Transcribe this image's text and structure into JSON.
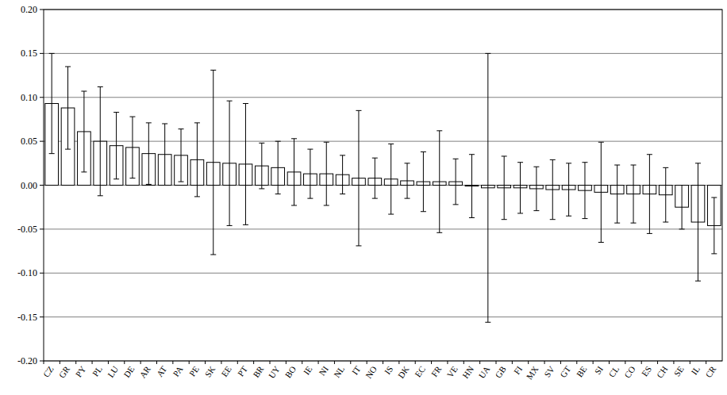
{
  "chart_data": {
    "type": "bar",
    "categories": [
      "CZ",
      "GR",
      "PY",
      "PL",
      "LU",
      "DE",
      "AR",
      "AT",
      "PA",
      "PE",
      "SK",
      "EE",
      "PT",
      "BR",
      "UY",
      "BO",
      "IE",
      "NI",
      "NL",
      "IT",
      "NO",
      "IS",
      "DK",
      "EC",
      "FR",
      "VE",
      "HN",
      "UA",
      "GB",
      "FI",
      "MX",
      "SV",
      "GT",
      "BE",
      "SI",
      "CL",
      "CO",
      "ES",
      "CH",
      "SE",
      "IL",
      "CR"
    ],
    "values": [
      0.093,
      0.088,
      0.061,
      0.05,
      0.045,
      0.043,
      0.036,
      0.035,
      0.034,
      0.029,
      0.026,
      0.025,
      0.024,
      0.022,
      0.02,
      0.015,
      0.013,
      0.013,
      0.012,
      0.008,
      0.008,
      0.007,
      0.005,
      0.004,
      0.004,
      0.004,
      -0.001,
      -0.003,
      -0.003,
      -0.003,
      -0.004,
      -0.005,
      -0.005,
      -0.006,
      -0.008,
      -0.01,
      -0.01,
      -0.01,
      -0.011,
      -0.025,
      -0.042,
      -0.046
    ],
    "errors": [
      0.057,
      0.047,
      0.046,
      0.062,
      0.038,
      0.035,
      0.035,
      0.035,
      0.03,
      0.042,
      0.105,
      0.071,
      0.069,
      0.026,
      0.03,
      0.038,
      0.028,
      0.036,
      0.022,
      0.077,
      0.023,
      0.04,
      0.02,
      0.034,
      0.058,
      0.026,
      0.036,
      0.153,
      0.036,
      0.029,
      0.025,
      0.034,
      0.03,
      0.032,
      0.057,
      0.033,
      0.033,
      0.045,
      0.031,
      0.025,
      0.067,
      0.032
    ],
    "color": "#ffffff",
    "ylim": [
      -0.2,
      0.2
    ],
    "yticks": [
      {
        "value": -0.2,
        "label": "-0.20"
      },
      {
        "value": -0.15,
        "label": "-0.15"
      },
      {
        "value": -0.1,
        "label": "-0.10"
      },
      {
        "value": -0.05,
        "label": "-0.05"
      },
      {
        "value": 0,
        "label": "0.00"
      },
      {
        "value": 0.05,
        "label": "0.05"
      },
      {
        "value": 0.1,
        "label": "0.10"
      },
      {
        "value": 0.15,
        "label": "0.15"
      },
      {
        "value": 0.2,
        "label": "0.20"
      }
    ],
    "grid": true
  }
}
